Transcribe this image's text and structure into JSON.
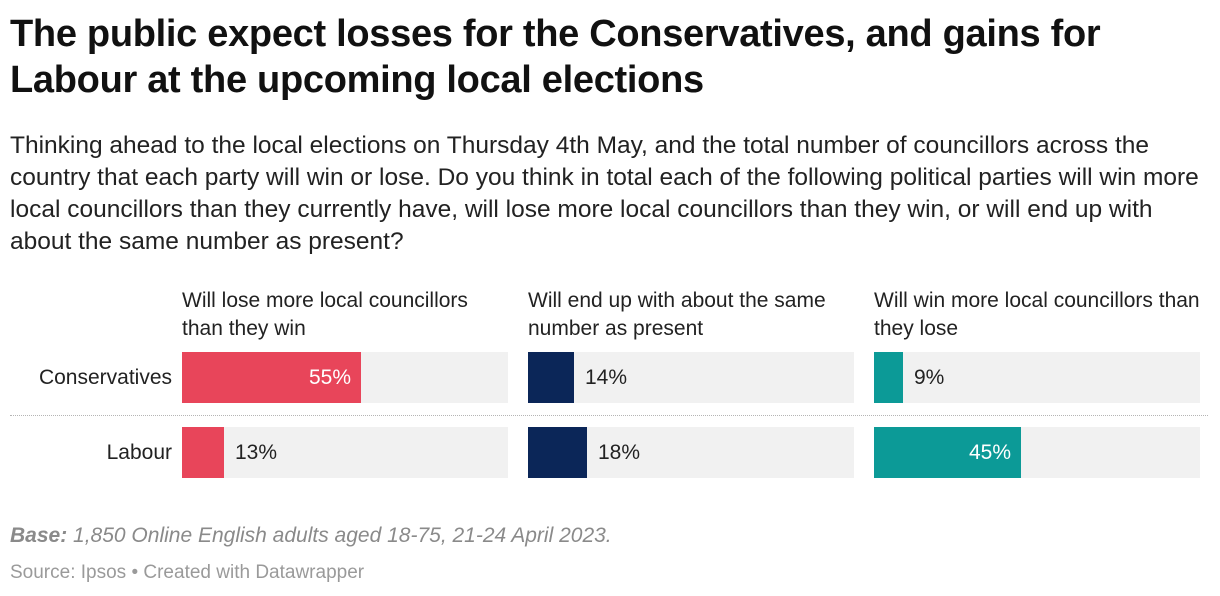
{
  "header": {
    "title": "The public expect losses for the Conservatives, and gains for Labour at the upcoming local elections",
    "subtitle": "Thinking ahead to the local elections on Thursday 4th May, and the total number of councillors across the country that each party will win or lose. Do you think in total each of the following political parties will win more local councillors than they currently have, will lose more local councillors than they win, or will end up with about the same number as present?"
  },
  "chart_data": {
    "type": "bar",
    "title": "The public expect losses for the Conservatives, and gains for Labour at the upcoming local elections",
    "categories": [
      "Conservatives",
      "Labour"
    ],
    "series": [
      {
        "name": "Will lose more local councillors than they win",
        "values": [
          55,
          13
        ],
        "labels": [
          "55%",
          "13%"
        ],
        "color": "#e8455a"
      },
      {
        "name": "Will end up with about the same number as present",
        "values": [
          14,
          18
        ],
        "labels": [
          "14%",
          "18%"
        ],
        "color": "#0b2658"
      },
      {
        "name": "Will win more local councillors than they lose",
        "values": [
          9,
          45
        ],
        "labels": [
          "9%",
          "45%"
        ],
        "color": "#0c9a97"
      }
    ],
    "xlim": [
      0,
      100
    ],
    "track_color": "#f1f1f1",
    "unit": "%"
  },
  "footer": {
    "base_label": "Base:",
    "base_text": "1,850 Online English adults aged 18-75, 21-24 April 2023.",
    "source": "Source: Ipsos • Created with Datawrapper"
  }
}
